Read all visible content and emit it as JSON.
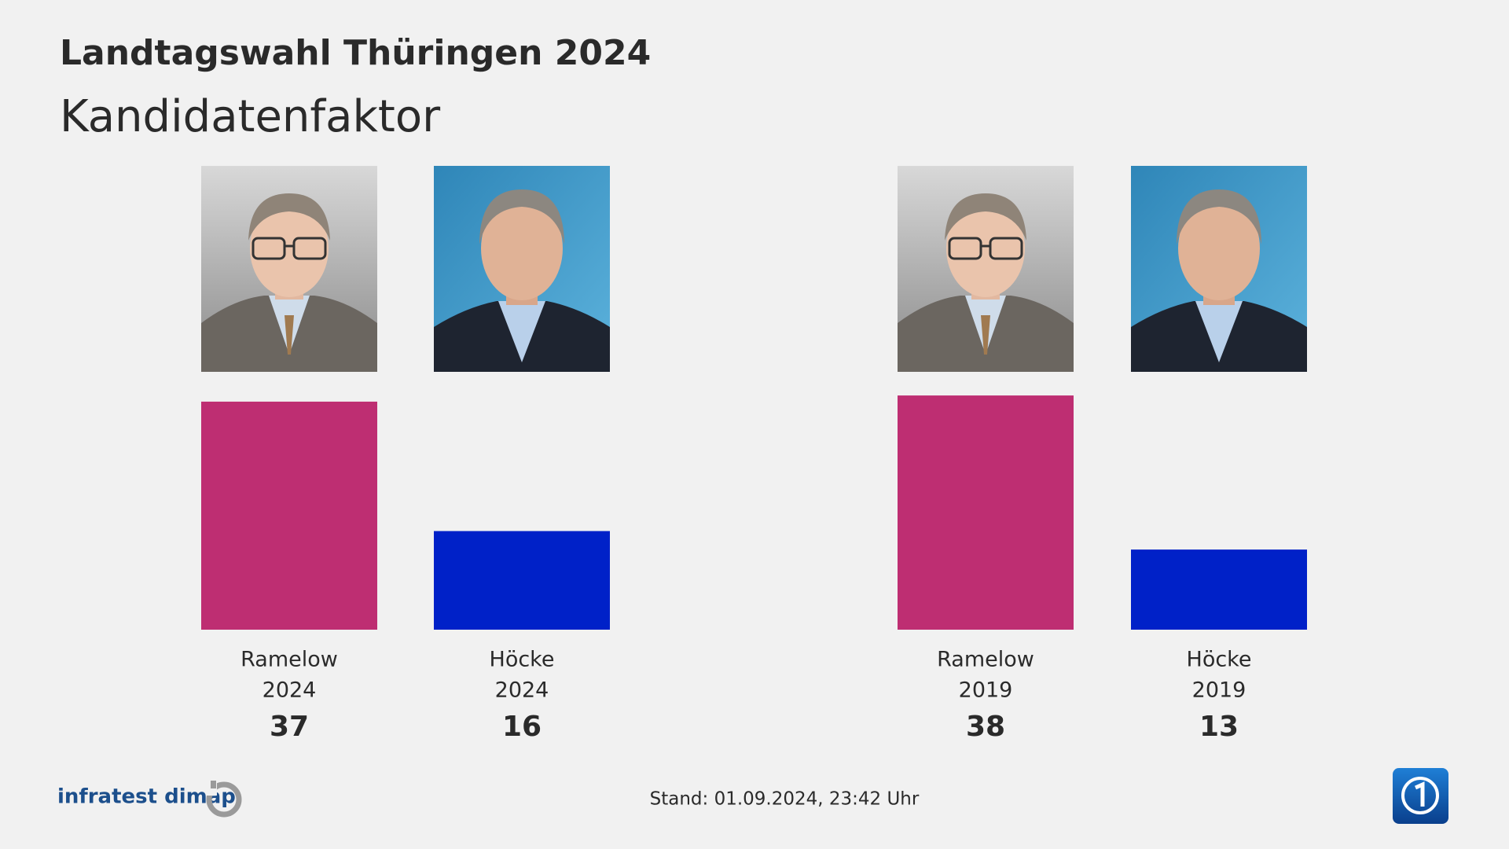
{
  "chart_data": {
    "type": "bar",
    "title": "Landtagswahl Thüringen 2024",
    "subtitle": "Kandidatenfaktor",
    "categories": [
      "Ramelow",
      "Höcke",
      "Ramelow",
      "Höcke"
    ],
    "years": [
      "2024",
      "2024",
      "2019",
      "2019"
    ],
    "values": [
      37,
      16,
      38,
      13
    ],
    "colors": [
      "#be2e72",
      "#0021c8",
      "#be2e72",
      "#0021c8"
    ]
  },
  "footer": {
    "source": "infratest dimap",
    "stand": "Stand:  01.09.2024, 23:42 Uhr"
  }
}
